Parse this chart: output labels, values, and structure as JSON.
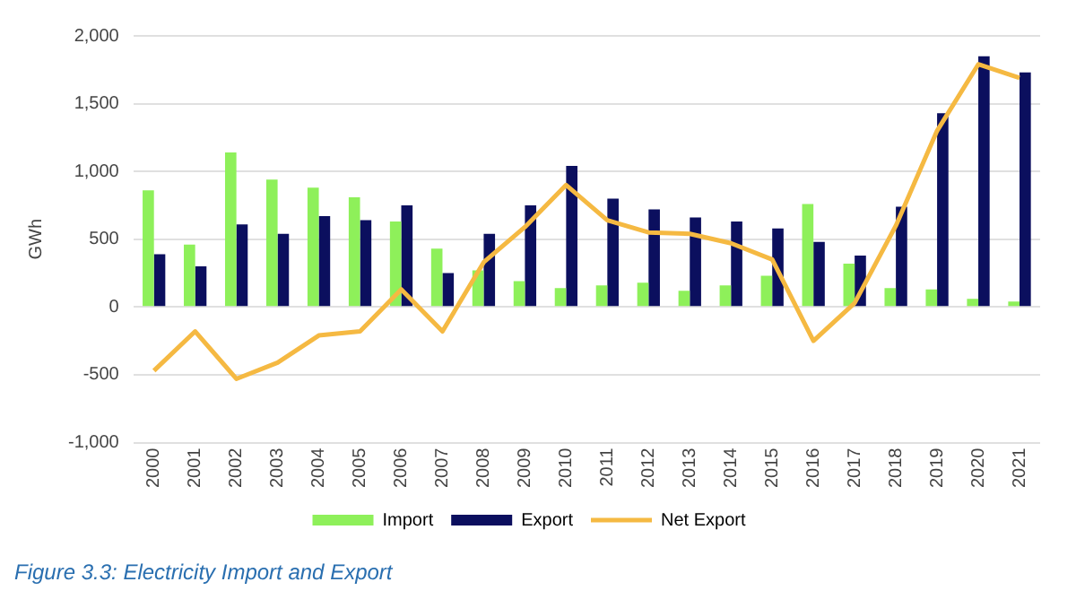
{
  "chart_data": {
    "type": "bar",
    "ylabel": "GWh",
    "categories": [
      "2000",
      "2001",
      "2002",
      "2003",
      "2004",
      "2005",
      "2006",
      "2007",
      "2008",
      "2009",
      "2010",
      "2011",
      "2012",
      "2013",
      "2014",
      "2015",
      "2016",
      "2017",
      "2018",
      "2019",
      "2020",
      "2021"
    ],
    "series": [
      {
        "name": "Import",
        "color": "#8ef05a",
        "values": [
          860,
          460,
          1140,
          940,
          880,
          810,
          630,
          430,
          270,
          190,
          140,
          160,
          180,
          120,
          160,
          230,
          760,
          320,
          140,
          130,
          60,
          40
        ]
      },
      {
        "name": "Export",
        "color": "#0b0f5e",
        "values": [
          390,
          300,
          610,
          540,
          670,
          640,
          750,
          250,
          540,
          750,
          1040,
          800,
          720,
          660,
          630,
          580,
          480,
          380,
          740,
          1430,
          1850,
          1730
        ]
      },
      {
        "name": "Net Export",
        "type": "line",
        "color": "#f5b942",
        "values": [
          -470,
          -180,
          -530,
          -410,
          -210,
          -180,
          130,
          -180,
          330,
          590,
          900,
          640,
          550,
          540,
          470,
          350,
          -250,
          30,
          600,
          1300,
          1790,
          1690
        ]
      }
    ],
    "ylim": [
      -1000,
      2000
    ],
    "yticks": [
      {
        "value": -1000,
        "label": "-1,000"
      },
      -500,
      0,
      500,
      {
        "value": 1000,
        "label": "1,000"
      },
      {
        "value": 1500,
        "label": "1,500"
      },
      {
        "value": 2000,
        "label": "2,000"
      }
    ],
    "grid": "y",
    "legend": "bottom",
    "marker": "none",
    "annotations": [
      "Figure 3.3: Electricity Import and Export"
    ]
  }
}
